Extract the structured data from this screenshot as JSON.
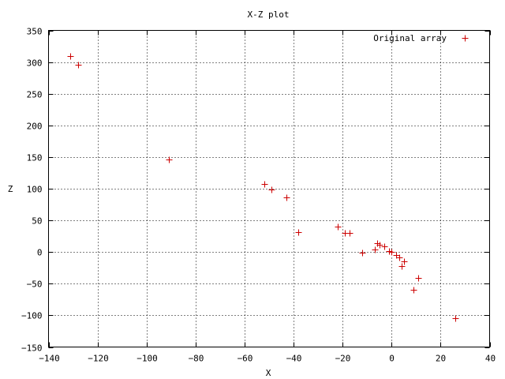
{
  "chart_data": {
    "type": "scatter",
    "title": "X-Z plot",
    "xlabel": "X",
    "ylabel": "Z",
    "xlim": [
      -140,
      40
    ],
    "ylim": [
      -150,
      350
    ],
    "xticks": [
      -140,
      -120,
      -100,
      -80,
      -60,
      -40,
      -20,
      0,
      20,
      40
    ],
    "yticks": [
      -150,
      -100,
      -50,
      0,
      50,
      100,
      150,
      200,
      250,
      300,
      350
    ],
    "grid": true,
    "legend_position": "top-right",
    "colors": {
      "series": "#cc0000"
    },
    "series": [
      {
        "name": "Original array",
        "marker": "plus",
        "points": [
          [
            -131,
            309
          ],
          [
            -128,
            296
          ],
          [
            -91,
            146
          ],
          [
            -52,
            107
          ],
          [
            -49,
            99
          ],
          [
            -43,
            86
          ],
          [
            -38,
            31
          ],
          [
            -22,
            40
          ],
          [
            -19,
            30
          ],
          [
            -17,
            30
          ],
          [
            -12,
            -1
          ],
          [
            -7,
            4
          ],
          [
            -6,
            14
          ],
          [
            -5,
            12
          ],
          [
            -3,
            9
          ],
          [
            -1,
            1
          ],
          [
            0,
            0
          ],
          [
            2,
            -5
          ],
          [
            3,
            -8
          ],
          [
            4,
            -22
          ],
          [
            5,
            -15
          ],
          [
            9,
            -59
          ],
          [
            11,
            -41
          ],
          [
            26,
            -104
          ]
        ]
      }
    ]
  }
}
